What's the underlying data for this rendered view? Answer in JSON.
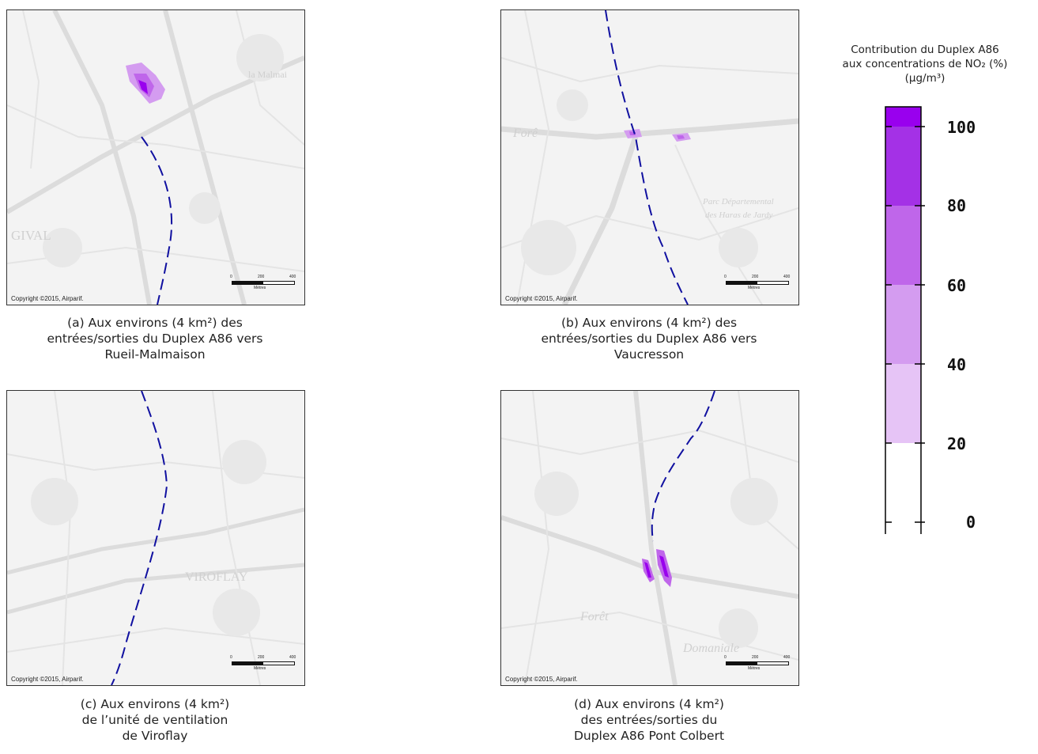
{
  "panels": [
    {
      "copyright": "Copyright ©2015, Airparif.",
      "scale_ticks": [
        "0",
        "200",
        "400"
      ],
      "scale_unit": "Mètres",
      "map_labels": [
        "la Malmai",
        "GIVAL"
      ],
      "caption": [
        "(a) Aux environs (4 km²) des",
        "entrées/sorties du Duplex A86 vers",
        "Rueil-Malmaison"
      ]
    },
    {
      "copyright": "Copyright ©2015, Airparif.",
      "scale_ticks": [
        "0",
        "200",
        "400"
      ],
      "scale_unit": "Mètres",
      "map_labels": [
        "Forê",
        "Parc Départemental",
        "des Haras de Jardy"
      ],
      "caption": [
        "(b) Aux environs  (4 km²) des",
        "entrées/sorties du Duplex A86 vers",
        "Vaucresson"
      ]
    },
    {
      "copyright": "Copyright ©2015, Airparif.",
      "scale_ticks": [
        "0",
        "200",
        "400"
      ],
      "scale_unit": "Mètres",
      "map_labels": [
        "VIROFLAY"
      ],
      "caption": [
        "(c) Aux environs (4 km²)",
        "de l’unité de ventilation",
        "de Viroflay"
      ]
    },
    {
      "copyright": "Copyright ©2015, Airparif.",
      "scale_ticks": [
        "0",
        "200",
        "400"
      ],
      "scale_unit": "Mètres",
      "map_labels": [
        "Forêt",
        "Domaniale"
      ],
      "caption": [
        "(d) Aux environs (4 km²)",
        "des entrées/sorties du",
        "Duplex A86 Pont Colbert"
      ]
    }
  ],
  "legend": {
    "title_line1": "Contribution du Duplex A86",
    "title_line2": "aux concentrations de NO₂ (%)",
    "title_line3": "(µg/m³)",
    "labels": [
      "100",
      "80",
      "60",
      "40",
      "20",
      "0"
    ],
    "colors": [
      "#9900ee",
      "#a431e6",
      "#bf66ea",
      "#d49cf0",
      "#e6c4f6",
      "#ffffff"
    ]
  },
  "route_color": "#1010a0"
}
